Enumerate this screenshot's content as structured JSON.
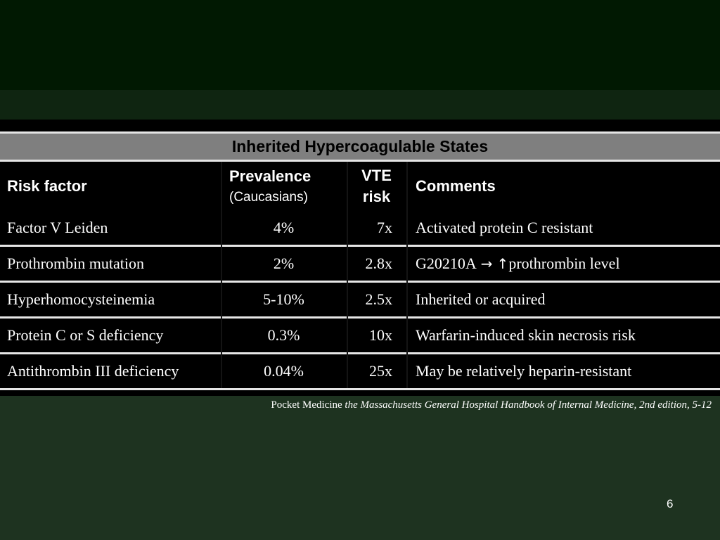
{
  "table": {
    "title": "Inherited Hypercoagulable States",
    "headers": {
      "risk_factor": "Risk factor",
      "prevalence": "Prevalence",
      "prevalence_sub": "(Caucasians)",
      "vte_line1": "VTE",
      "vte_line2": "risk",
      "comments": "Comments"
    },
    "rows": [
      {
        "risk_factor": "Factor V Leiden",
        "prevalence": "4%",
        "vte_risk": "7x",
        "comments": "Activated protein C resistant"
      },
      {
        "risk_factor": "Prothrombin mutation",
        "prevalence": "2%",
        "vte_risk": "2.8x",
        "comments_part1": "G20210A",
        "comments_arrow": "→",
        "comments_up": "↑",
        "comments_part2": "prothrombin level"
      },
      {
        "risk_factor": "Hyperhomocysteinemia",
        "prevalence": "5-10%",
        "vte_risk": "2.5x",
        "comments": "Inherited or acquired"
      },
      {
        "risk_factor": "Protein C or S deficiency",
        "prevalence": "0.3%",
        "vte_risk": "10x",
        "comments": "Warfarin-induced skin necrosis risk"
      },
      {
        "risk_factor": "Antithrombin III deficiency",
        "prevalence": "0.04%",
        "vte_risk": "25x",
        "comments": "May be relatively heparin-resistant"
      }
    ]
  },
  "source": {
    "prefix": "Pocket Medicine ",
    "italic": "the Massachusetts General Hospital Handbook of Internal Medicine, 2nd edition, 5-12"
  },
  "page_number": "6",
  "colors": {
    "background": "#1e3320",
    "top_band": "#011902",
    "title_row": "#7f7f7f",
    "table_bg": "#000000",
    "text": "#ffffff"
  }
}
